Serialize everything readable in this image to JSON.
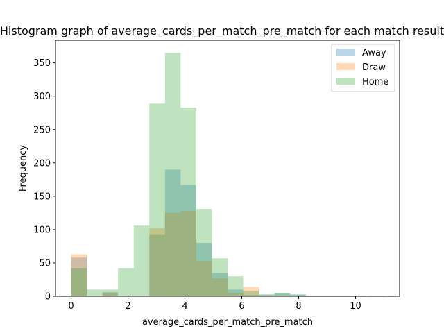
{
  "chart_data": {
    "type": "bar",
    "title": "Histogram graph of average_cards_per_match_pre_match for each match result",
    "xlabel": "average_cards_per_match_pre_match",
    "ylabel": "Frequency",
    "xlim": [
      -0.55,
      11.55
    ],
    "ylim": [
      0,
      384
    ],
    "xticks": [
      0,
      2,
      4,
      6,
      8,
      10
    ],
    "yticks": [
      0,
      50,
      100,
      150,
      200,
      250,
      300,
      350
    ],
    "legend_position": "top-right",
    "bin_width": 0.55,
    "series": [
      {
        "name": "Away",
        "color": "#1f77b4",
        "opacity": 0.3,
        "bins": [
          {
            "x0": 0.0,
            "value": 58
          },
          {
            "x0": 0.55,
            "value": 0
          },
          {
            "x0": 1.1,
            "value": 6
          },
          {
            "x0": 1.65,
            "value": 0
          },
          {
            "x0": 2.2,
            "value": 0
          },
          {
            "x0": 2.75,
            "value": 92
          },
          {
            "x0": 3.3,
            "value": 190
          },
          {
            "x0": 3.85,
            "value": 167
          },
          {
            "x0": 4.4,
            "value": 80
          },
          {
            "x0": 4.95,
            "value": 35
          },
          {
            "x0": 5.5,
            "value": 10
          },
          {
            "x0": 6.05,
            "value": 2
          },
          {
            "x0": 6.6,
            "value": 2
          },
          {
            "x0": 7.15,
            "value": 4
          },
          {
            "x0": 7.7,
            "value": 3
          },
          {
            "x0": 10.45,
            "value": 1
          }
        ]
      },
      {
        "name": "Draw",
        "color": "#ff7f0e",
        "opacity": 0.3,
        "bins": [
          {
            "x0": 0.0,
            "value": 63
          },
          {
            "x0": 0.55,
            "value": 0
          },
          {
            "x0": 1.1,
            "value": 5
          },
          {
            "x0": 1.65,
            "value": 0
          },
          {
            "x0": 2.2,
            "value": 0
          },
          {
            "x0": 2.75,
            "value": 102
          },
          {
            "x0": 3.3,
            "value": 125
          },
          {
            "x0": 3.85,
            "value": 128
          },
          {
            "x0": 4.4,
            "value": 53
          },
          {
            "x0": 4.95,
            "value": 27
          },
          {
            "x0": 5.5,
            "value": 5
          },
          {
            "x0": 6.05,
            "value": 14
          },
          {
            "x0": 6.6,
            "value": 1
          },
          {
            "x0": 7.15,
            "value": 1
          }
        ]
      },
      {
        "name": "Home",
        "color": "#2ca02c",
        "opacity": 0.3,
        "bins": [
          {
            "x0": 0.0,
            "value": 42
          },
          {
            "x0": 0.55,
            "value": 10
          },
          {
            "x0": 1.1,
            "value": 10
          },
          {
            "x0": 1.65,
            "value": 42
          },
          {
            "x0": 2.2,
            "value": 106
          },
          {
            "x0": 2.75,
            "value": 289
          },
          {
            "x0": 3.3,
            "value": 365
          },
          {
            "x0": 3.85,
            "value": 283
          },
          {
            "x0": 4.4,
            "value": 131
          },
          {
            "x0": 4.95,
            "value": 57
          },
          {
            "x0": 5.5,
            "value": 30
          },
          {
            "x0": 6.05,
            "value": 8
          },
          {
            "x0": 6.6,
            "value": 3
          },
          {
            "x0": 7.15,
            "value": 5
          },
          {
            "x0": 7.7,
            "value": 2
          }
        ]
      }
    ]
  }
}
